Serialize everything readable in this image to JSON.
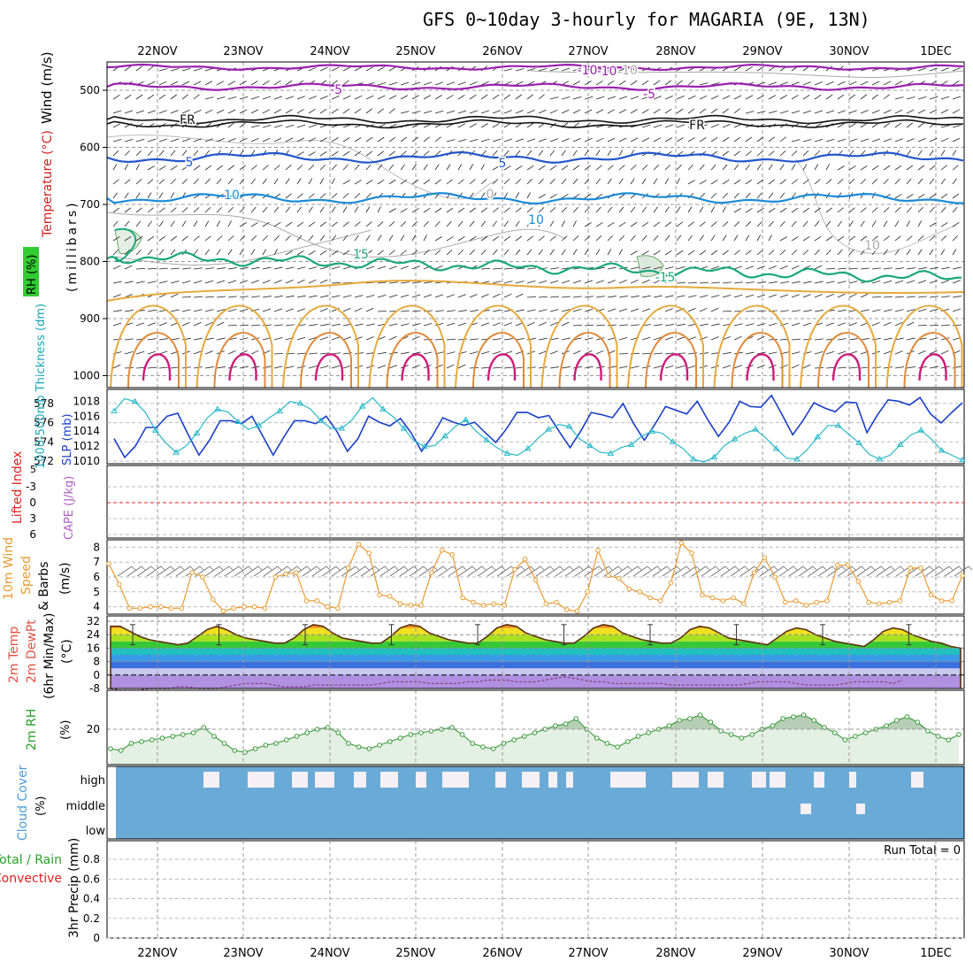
{
  "title": "GFS 0~10day 3-hourly for MAGARIA (9E, 13N)",
  "dates": [
    "22NOV",
    "23NOV",
    "24NOV",
    "25NOV",
    "26NOV",
    "27NOV",
    "28NOV",
    "29NOV",
    "30NOV",
    "1DEC"
  ],
  "panels": {
    "upper": {
      "ylabel_wind": "Wind (m/s)",
      "ylabel_temp": "Temperature (°C)",
      "ylabel_rh": "RH (%)",
      "ylabel_mb": "(millibars)",
      "yticks": [
        "500",
        "600",
        "700",
        "800",
        "900",
        "1000"
      ],
      "isotherm_labels": [
        "-10",
        "-5",
        "FR",
        "5",
        "10",
        "15",
        "10",
        "-5",
        "-10",
        "FR",
        "5",
        "10",
        "-15",
        "0",
        "10"
      ]
    },
    "thickness": {
      "ylabel_thick": "1000-500mb Thickness (dm)",
      "ylabel_slp": "SLP (mb)",
      "left_ticks": [
        "578",
        "576",
        "574",
        "572"
      ],
      "right_ticks": [
        "1018",
        "1016",
        "1014",
        "1012",
        "1010"
      ]
    },
    "stability": {
      "ylabel_li": "Lifted Index",
      "ylabel_cape": "CAPE (J/kg)",
      "ticks": [
        "-3",
        "0",
        "3",
        "6"
      ],
      "top_tick": "5"
    },
    "wind10": {
      "ylabel1": "10m Wind",
      "ylabel2": "Speed",
      "ylabel3": "& Barbs",
      "unit": "(m/s)",
      "ticks": [
        "8",
        "7",
        "6",
        "5",
        "4"
      ]
    },
    "temp2m": {
      "ylabel1": "2m Temp",
      "ylabel2": "2m DewPt",
      "ylabel3": "(6hr Min/Max)",
      "unit": "(°C)",
      "ticks": [
        "32",
        "24",
        "16",
        "8",
        "0",
        "-8"
      ]
    },
    "rh2m": {
      "ylabel": "2m RH",
      "unit": "(%)",
      "ticks": [
        "20"
      ]
    },
    "cloud": {
      "ylabel": "Cloud Cover",
      "unit": "(%)",
      "levels": [
        "high",
        "middle",
        "low"
      ]
    },
    "precip": {
      "ylabel_total": "Total / Rain",
      "ylabel_conv": "Convective",
      "ylabel": "3hr Precip (mm)",
      "ticks": [
        "0.8",
        "0.6",
        "0.4",
        "0.2",
        "0"
      ],
      "run_total": "Run Total = 0"
    }
  },
  "colors": {
    "slp": "#1a3fc8",
    "thickness": "#29b8c8",
    "wind": "#e89a30",
    "rh": "#3a9a3a",
    "cloud": "#6aaad6",
    "temp": "#5a3010",
    "dew": "#8a4a8a"
  },
  "chart_data": [
    {
      "type": "line",
      "name": "thickness_slp",
      "series": [
        {
          "name": "SLP (mb)",
          "values": [
            1013,
            1010.5,
            1012,
            1014.5,
            1014.5,
            1016,
            1016.4,
            1013.5,
            1010.8,
            1012.8,
            1015.4,
            1015.4,
            1015,
            1016,
            1013.4,
            1010.8,
            1013.2,
            1015.4,
            1015.4,
            1015,
            1016,
            1014,
            1011.3,
            1013,
            1016,
            1015.2,
            1014.7,
            1015.7,
            1013.8,
            1011.3,
            1013.3,
            1015.8,
            1015.2,
            1014.8,
            1015.2,
            1013.8,
            1012.5,
            1014.3,
            1016.5,
            1016.5,
            1015.8,
            1016.1,
            1013.9,
            1011.8,
            1014,
            1016.5,
            1016.2,
            1015.8,
            1017.7,
            1015,
            1012.8,
            1014.9,
            1017.3,
            1016.8,
            1016.3,
            1018,
            1015.5,
            1013.3,
            1015.2,
            1018,
            1017.3,
            1017.2,
            1018.8,
            1016.2,
            1013.5,
            1015.5,
            1017.8,
            1017.1,
            1016.6,
            1017.9,
            1017.8,
            1013.8,
            1016.2,
            1018.2,
            1018,
            1017.5,
            1018.5,
            1016.3,
            1015.1,
            1016.5,
            1017.8
          ]
        },
        {
          "name": "1000-500mb Thickness (dm)",
          "values": [
            577.2,
            578.5,
            578.2,
            577.1,
            575.2,
            573.9,
            572.9,
            573.6,
            574.9,
            576.5,
            577.4,
            577.1,
            576.1,
            575.3,
            575.7,
            576.5,
            577.2,
            578.2,
            578.0,
            577.4,
            576.2,
            575.4,
            575.4,
            576.3,
            577.7,
            578.6,
            577.4,
            576.6,
            575.4,
            574.1,
            573.5,
            573.6,
            574.6,
            575.6,
            576.3,
            575.1,
            574.2,
            573.4,
            572.8,
            572.6,
            573.3,
            574.4,
            575.3,
            575.8,
            575.6,
            574.3,
            573.6,
            572.9,
            572.8,
            573.4,
            573.7,
            574.6,
            575.1,
            574.9,
            574.0,
            573.3,
            572.2,
            571.9,
            572.4,
            573.6,
            574.3,
            574.9,
            575.3,
            574.4,
            573.3,
            572.3,
            572.2,
            573.2,
            574.5,
            575.7,
            575.7,
            574.8,
            573.9,
            572.7,
            572.2,
            572.6,
            573.7,
            574.7,
            575.2,
            574.3,
            573.1,
            572.6,
            572.1
          ]
        }
      ],
      "ylim_left": [
        572,
        579
      ],
      "ylim_right": [
        1010,
        1019
      ]
    },
    {
      "type": "line",
      "name": "10m wind speed",
      "values": [
        6.9,
        5.5,
        3.9,
        3.9,
        4.0,
        4.0,
        3.9,
        3.9,
        6.3,
        6.0,
        4.5,
        3.7,
        3.9,
        4.0,
        4.0,
        3.9,
        6.0,
        6.2,
        6.3,
        4.4,
        4.4,
        4.0,
        3.9,
        6.6,
        8.2,
        7.6,
        4.8,
        4.7,
        4.2,
        4.1,
        4.1,
        6.3,
        7.8,
        7.5,
        4.6,
        4.3,
        4.1,
        4.2,
        4.1,
        6.5,
        7.2,
        5.8,
        4.2,
        4.3,
        3.8,
        3.7,
        5.0,
        7.8,
        6.1,
        5.9,
        5.2,
        5.0,
        4.6,
        4.4,
        5.6,
        8.3,
        7.6,
        4.8,
        4.6,
        4.4,
        4.6,
        4.2,
        6.3,
        7.3,
        6.0,
        4.3,
        4.4,
        4.1,
        4.3,
        4.4,
        6.8,
        6.8,
        5.7,
        4.3,
        4.2,
        4.3,
        4.4,
        6.6,
        6.6,
        4.8,
        4.4,
        4.4,
        6.1
      ],
      "ylim": [
        3.5,
        8.5
      ]
    },
    {
      "type": "area",
      "name": "2m RH",
      "values": [
        9,
        8,
        12,
        13,
        14,
        15,
        16,
        17,
        18,
        21,
        16,
        12,
        8,
        7,
        9,
        11,
        12,
        14,
        16,
        18,
        20,
        21,
        18,
        12,
        10,
        9,
        11,
        13,
        15,
        17,
        18,
        19,
        20,
        21,
        17,
        12,
        10,
        9,
        12,
        14,
        16,
        18,
        20,
        22,
        23,
        26,
        20,
        15,
        12,
        10,
        13,
        16,
        18,
        20,
        22,
        25,
        26,
        28,
        24,
        19,
        17,
        15,
        17,
        20,
        22,
        26,
        27,
        28,
        25,
        21,
        18,
        14,
        16,
        18,
        20,
        22,
        25,
        27,
        24,
        19,
        16,
        14,
        17
      ],
      "ylim": [
        0,
        42
      ]
    },
    {
      "type": "area",
      "name": "2m temp",
      "values": [
        29,
        29,
        26,
        23,
        21,
        20,
        19,
        18,
        19,
        23,
        27,
        29,
        27,
        24,
        22,
        21,
        20,
        19,
        19,
        22,
        27,
        30,
        29,
        25,
        22,
        21,
        20,
        19,
        19,
        23,
        28,
        30,
        29,
        25,
        23,
        21,
        20,
        19,
        19,
        23,
        28,
        30,
        29,
        25,
        23,
        21,
        20,
        19,
        19,
        23,
        28,
        30,
        29,
        25,
        23,
        21,
        20,
        19,
        19,
        22,
        27,
        29,
        28,
        25,
        22,
        21,
        20,
        19,
        18,
        22,
        26,
        28,
        27,
        24,
        22,
        20,
        19,
        18,
        17,
        21,
        26,
        28,
        27,
        24,
        22,
        20,
        19,
        17,
        16
      ],
      "ylim": [
        -8,
        32
      ]
    },
    {
      "type": "line",
      "name": "2m dewpoint",
      "values": [
        -8,
        -9,
        -9,
        -9,
        -8,
        -8,
        -8,
        -7,
        -7,
        -8,
        -8,
        -8,
        -7,
        -6,
        -5,
        -5,
        -5,
        -6,
        -7,
        -7,
        -7,
        -6,
        -6,
        -6,
        -6,
        -6,
        -6,
        -6,
        -5,
        -4,
        -4,
        -4,
        -4,
        -5,
        -5,
        -5,
        -5,
        -4,
        -4,
        -3,
        -3,
        -3,
        -4,
        -4,
        -4,
        -3,
        -2,
        -1,
        -2,
        -3,
        -4,
        -4,
        -5,
        -5,
        -5,
        -5,
        -5,
        -5,
        -6,
        -6,
        -6,
        -6,
        -6,
        -6,
        -6,
        -6,
        -5,
        -4,
        -4,
        -4,
        -4,
        -5,
        -6,
        -6,
        -6,
        -6,
        -5,
        -4,
        -4,
        -4,
        -4,
        -5,
        -3
      ],
      "ylim": [
        -8,
        32
      ]
    },
    {
      "type": "bar",
      "name": "3hr precip",
      "values": [],
      "ylim": [
        0,
        1
      ]
    }
  ]
}
